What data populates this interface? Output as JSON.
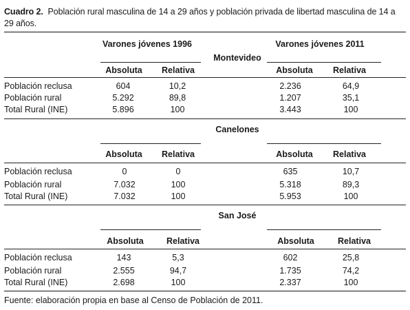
{
  "caption": {
    "label": "Cuadro 2.",
    "text": "Población rural masculina de 14 a 29 años y población privada de libertad masculina de 14 a 29 años."
  },
  "headers": {
    "group_1996": "Varones jóvenes 1996",
    "group_2011": "Varones jóvenes 2011",
    "absoluta": "Absoluta",
    "relativa": "Relativa"
  },
  "sections": [
    {
      "name": "Montevideo",
      "rows": [
        {
          "label": "Población reclusa",
          "abs1996": "604",
          "rel1996": "10,2",
          "abs2011": "2.236",
          "rel2011": "64,9"
        },
        {
          "label": "Población rural",
          "abs1996": "5.292",
          "rel1996": "89,8",
          "abs2011": "1.207",
          "rel2011": "35,1"
        },
        {
          "label": "Total Rural (INE)",
          "abs1996": "5.896",
          "rel1996": "100",
          "abs2011": "3.443",
          "rel2011": "100"
        }
      ]
    },
    {
      "name": "Canelones",
      "rows": [
        {
          "label": "Población reclusa",
          "abs1996": "0",
          "rel1996": "0",
          "abs2011": "635",
          "rel2011": "10,7"
        },
        {
          "label": "Población rural",
          "abs1996": "7.032",
          "rel1996": "100",
          "abs2011": "5.318",
          "rel2011": "89,3"
        },
        {
          "label": "Total Rural (INE)",
          "abs1996": "7.032",
          "rel1996": "100",
          "abs2011": "5.953",
          "rel2011": "100"
        }
      ]
    },
    {
      "name": "San José",
      "rows": [
        {
          "label": "Población reclusa",
          "abs1996": "143",
          "rel1996": "5,3",
          "abs2011": "602",
          "rel2011": "25,8"
        },
        {
          "label": "Población rural",
          "abs1996": "2.555",
          "rel1996": "94,7",
          "abs2011": "1.735",
          "rel2011": "74,2"
        },
        {
          "label": "Total Rural (INE)",
          "abs1996": "2.698",
          "rel1996": "100",
          "abs2011": "2.337",
          "rel2011": "100"
        }
      ]
    }
  ],
  "footnote": "Fuente: elaboración propia en base al Censo de Población de 2011."
}
